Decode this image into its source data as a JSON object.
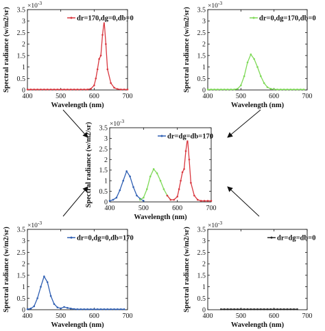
{
  "figure": {
    "arrow_color": "#111111",
    "exponent_base": "×10",
    "exponent_power": "-3"
  },
  "chart_data": [
    {
      "type": "line",
      "xlabel": "Wavelength (nm)",
      "ylabel": "Spectral radiance (w/m2/sr)",
      "xlim": [
        400,
        700
      ],
      "ylim": [
        0,
        3.5
      ],
      "xticks": [
        400,
        500,
        600,
        700
      ],
      "yticks": [
        0,
        0.5,
        1,
        1.5,
        2,
        2.5,
        3,
        3.5
      ],
      "y_scale_note": "x10^-3",
      "legend": "top-right",
      "grid": false,
      "series": [
        {
          "name": "dr=170,dg=0,db=0",
          "color": "#d9373f",
          "x": [
            400,
            410,
            420,
            430,
            440,
            450,
            460,
            470,
            480,
            490,
            500,
            510,
            520,
            530,
            540,
            550,
            560,
            570,
            580,
            590,
            600,
            605,
            610,
            615,
            620,
            625,
            630,
            635,
            640,
            650,
            660,
            670,
            680,
            690,
            700
          ],
          "y": [
            0.02,
            0.02,
            0.02,
            0.02,
            0.02,
            0.02,
            0.02,
            0.02,
            0.02,
            0.02,
            0.02,
            0.02,
            0.02,
            0.02,
            0.02,
            0.02,
            0.02,
            0.02,
            0.02,
            0.05,
            0.2,
            0.5,
            0.9,
            1.35,
            1.5,
            2.4,
            3.0,
            2.0,
            0.9,
            0.3,
            0.1,
            0.04,
            0.02,
            0.02,
            0.02
          ]
        }
      ]
    },
    {
      "type": "line",
      "xlabel": "Wavelength (nm)",
      "ylabel": "Spectral radiance (w/m2/sr)",
      "xlim": [
        400,
        700
      ],
      "ylim": [
        0,
        3.5
      ],
      "xticks": [
        400,
        500,
        600,
        700
      ],
      "yticks": [
        0,
        0.5,
        1,
        1.5,
        2,
        2.5,
        3,
        3.5
      ],
      "y_scale_note": "x10^-3",
      "legend": "top-right",
      "grid": false,
      "series": [
        {
          "name": "dr=0,dg=170,db=0",
          "color": "#7ed957",
          "x": [
            400,
            410,
            420,
            430,
            440,
            450,
            460,
            470,
            480,
            490,
            500,
            510,
            520,
            530,
            540,
            550,
            560,
            570,
            580,
            590,
            600,
            610,
            620,
            630,
            640,
            650,
            660,
            670,
            680,
            690
          ],
          "y": [
            0.02,
            0.02,
            0.02,
            0.02,
            0.02,
            0.02,
            0.02,
            0.02,
            0.02,
            0.05,
            0.2,
            0.6,
            1.2,
            1.55,
            1.35,
            1.0,
            0.6,
            0.3,
            0.12,
            0.05,
            0.03,
            0.02,
            0.02,
            0.02,
            0.02,
            0.02,
            0.02,
            0.02,
            0.02,
            0.02
          ]
        }
      ]
    },
    {
      "type": "line",
      "xlabel": "Wavelength (nm)",
      "ylabel": "Spectral radiance (w/m2/sr)",
      "xlim": [
        400,
        700
      ],
      "ylim": [
        0,
        3.5
      ],
      "xticks": [
        400,
        500,
        600,
        700
      ],
      "yticks": [
        0,
        0.5,
        1,
        1.5,
        2,
        2.5,
        3,
        3.5
      ],
      "y_scale_note": "x10^-3",
      "legend": "top-right",
      "grid": false,
      "series": [
        {
          "name": "dr=dg=db=170",
          "color": "#2f5fb3",
          "x": [
            400,
            410,
            420,
            430,
            440,
            450,
            460,
            470,
            480,
            490,
            500
          ],
          "y": [
            0.05,
            0.1,
            0.2,
            0.55,
            1.0,
            1.45,
            1.2,
            0.7,
            0.3,
            0.15,
            0.05
          ]
        },
        {
          "name": "",
          "color": "#7ed957",
          "x": [
            490,
            500,
            510,
            520,
            530,
            540,
            550,
            560,
            570,
            580
          ],
          "y": [
            0.1,
            0.2,
            0.6,
            1.2,
            1.55,
            1.35,
            1.0,
            0.6,
            0.3,
            0.1
          ]
        },
        {
          "name": "",
          "color": "#d9373f",
          "x": [
            570,
            580,
            590,
            600,
            605,
            610,
            615,
            620,
            625,
            630,
            635,
            640,
            650,
            660,
            670,
            680,
            690,
            700
          ],
          "y": [
            0.3,
            0.1,
            0.1,
            0.25,
            0.6,
            1.0,
            1.4,
            1.55,
            2.4,
            3.0,
            2.0,
            0.9,
            0.3,
            0.1,
            0.05,
            0.05,
            0.05,
            0.05
          ]
        }
      ]
    },
    {
      "type": "line",
      "xlabel": "Wavelength (nm)",
      "ylabel": "Spectral radiance (w/m2/sr)",
      "xlim": [
        400,
        700
      ],
      "ylim": [
        0,
        3.5
      ],
      "xticks": [
        400,
        500,
        600,
        700
      ],
      "yticks": [
        0,
        0.5,
        1,
        1.5,
        2,
        2.5,
        3,
        3.5
      ],
      "y_scale_note": "x10^-3",
      "legend": "top-right",
      "grid": false,
      "series": [
        {
          "name": "dr=0,dg=0,db=170",
          "color": "#2f5fb3",
          "x": [
            400,
            410,
            420,
            430,
            440,
            450,
            460,
            470,
            480,
            490,
            500,
            510,
            520,
            530,
            540,
            550,
            560,
            570,
            580,
            590,
            600,
            610,
            620,
            630,
            640,
            650,
            660,
            670,
            680,
            690
          ],
          "y": [
            0.02,
            0.05,
            0.15,
            0.5,
            1.0,
            1.45,
            1.2,
            0.6,
            0.25,
            0.1,
            0.06,
            0.12,
            0.08,
            0.05,
            0.03,
            0.02,
            0.02,
            0.02,
            0.02,
            0.02,
            0.02,
            0.02,
            0.02,
            0.02,
            0.02,
            0.02,
            0.02,
            0.02,
            0.02,
            0.02
          ]
        }
      ]
    },
    {
      "type": "line",
      "xlabel": "Wavelength (nm)",
      "ylabel": "Spectral radiance (w/m2/sr)",
      "xlim": [
        400,
        700
      ],
      "ylim": [
        0,
        3.5
      ],
      "xticks": [
        400,
        500,
        600,
        700
      ],
      "yticks": [
        0,
        0.5,
        1,
        1.5,
        2,
        2.5,
        3,
        3.5
      ],
      "y_scale_note": "x10^-3",
      "legend": "top-right",
      "grid": false,
      "series": [
        {
          "name": "dr=dg=db=0",
          "color": "#222222",
          "x": [
            440,
            450,
            460,
            470,
            480,
            490,
            500,
            510,
            520,
            530,
            540,
            550,
            560,
            570,
            580,
            590,
            600,
            610,
            620,
            630,
            640,
            650,
            660,
            670
          ],
          "y": [
            0.02,
            0.02,
            0.02,
            0.02,
            0.02,
            0.02,
            0.02,
            0.02,
            0.02,
            0.02,
            0.02,
            0.02,
            0.02,
            0.02,
            0.02,
            0.02,
            0.02,
            0.02,
            0.02,
            0.02,
            0.02,
            0.02,
            0.02,
            0.02
          ]
        }
      ]
    }
  ]
}
